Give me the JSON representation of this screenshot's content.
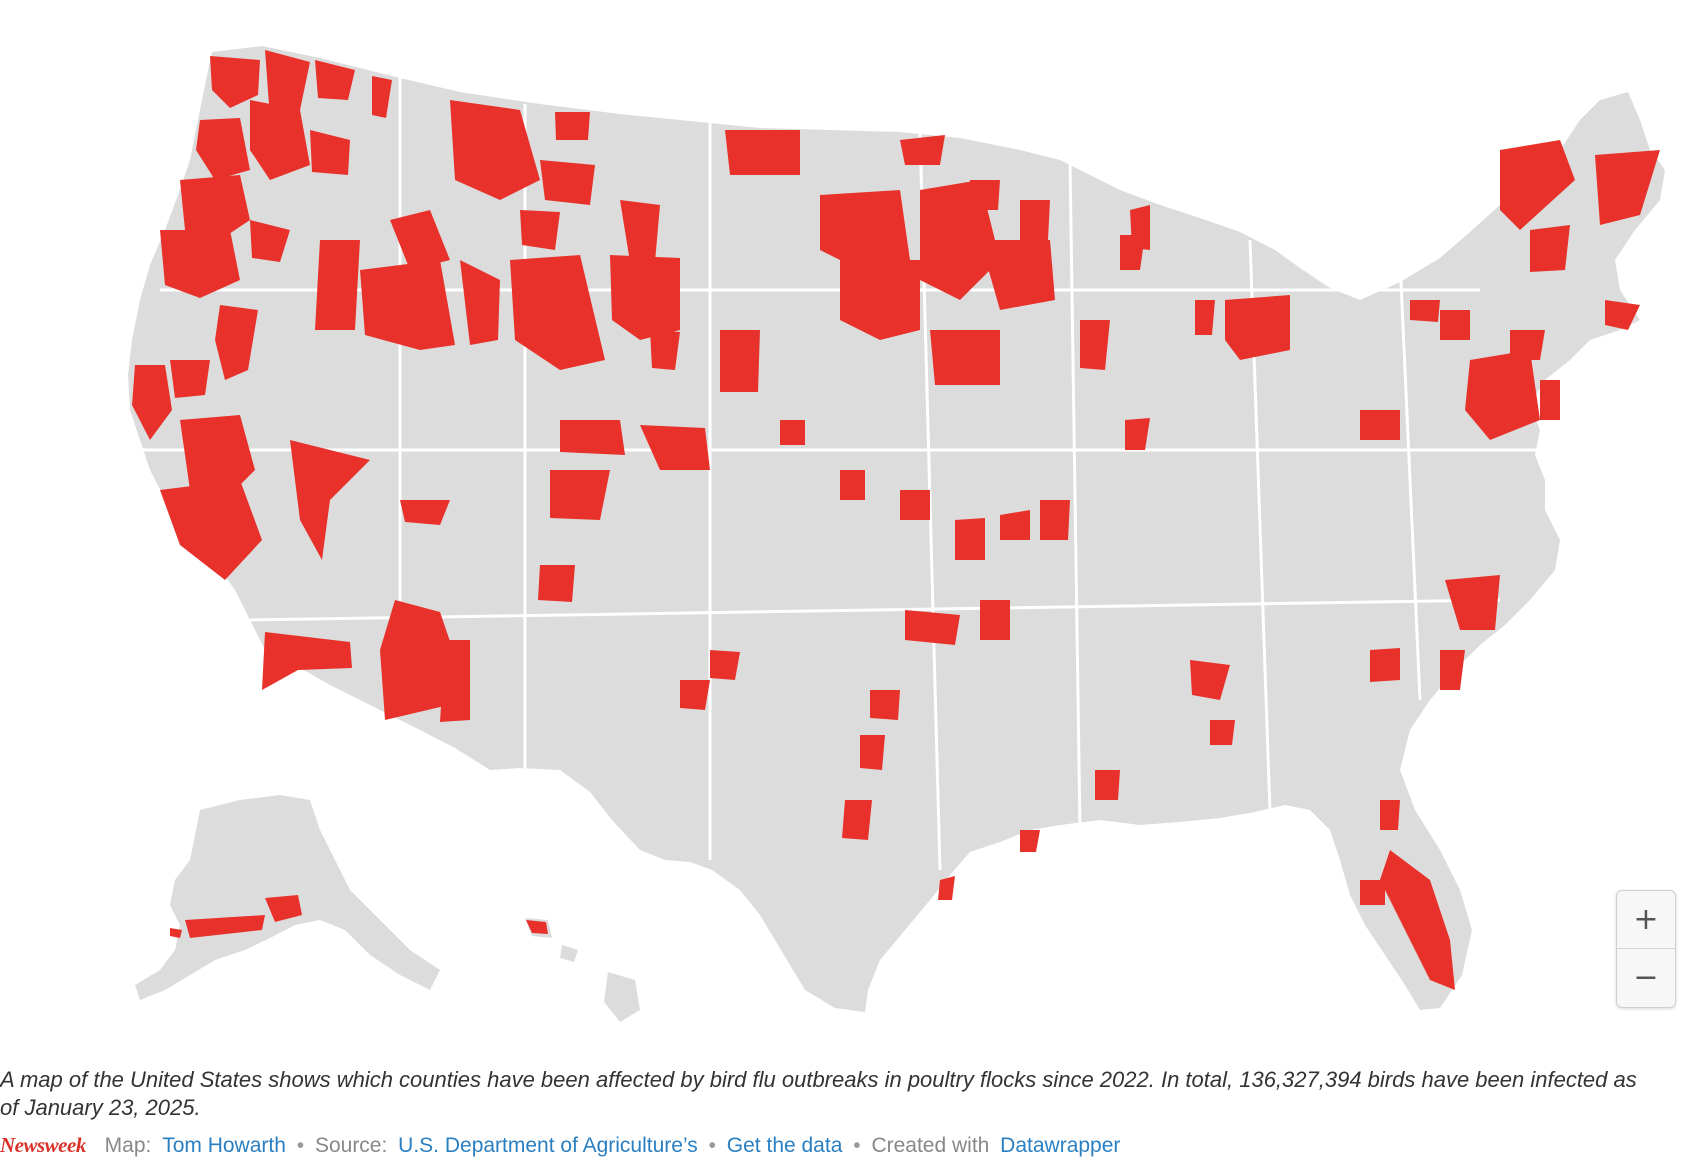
{
  "colors": {
    "land": "#dcdcdc",
    "affected": "#e8312a",
    "state_border": "#ffffff",
    "background": "#ffffff",
    "link": "#2a7fc1"
  },
  "map": {
    "subject": "Counties affected by bird flu outbreaks in poultry flocks since 2022",
    "regions_shown": [
      "Contiguous United States",
      "Alaska",
      "Hawaii"
    ],
    "legend": ""
  },
  "zoom": {
    "plus_label": "+",
    "minus_label": "−"
  },
  "caption": "A map of the United States shows which counties have been affected by bird flu outbreaks in poultry flocks since 2022. In total, 136,327,394 birds have been infected as of January 23, 2025.",
  "footer": {
    "brand": "Newsweek",
    "map_prefix": "Map:",
    "map_author": "Tom Howarth",
    "source_prefix": "Source:",
    "source_name": "U.S. Department of Agriculture’s",
    "data_link": "Get the data",
    "created_prefix": "Created with",
    "created_tool": "Datawrapper",
    "separator": "•"
  }
}
